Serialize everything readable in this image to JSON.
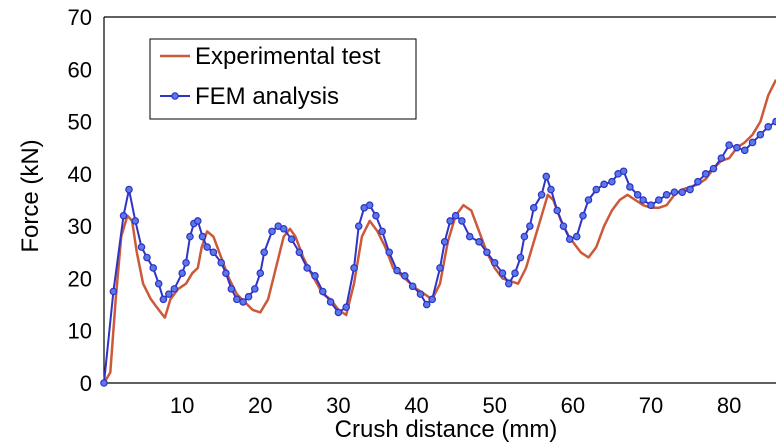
{
  "chart_data": {
    "type": "line",
    "xlabel": "Crush distance (mm)",
    "ylabel": "Force (kN)",
    "xlim": [
      0,
      86
    ],
    "ylim": [
      0,
      70
    ],
    "x_ticks": [
      10,
      20,
      30,
      40,
      50,
      60,
      70,
      80
    ],
    "y_ticks": [
      0,
      10,
      20,
      30,
      40,
      50,
      60,
      70
    ],
    "grid": false,
    "legend": "top-left",
    "series": [
      {
        "name": "Experimental test",
        "color": "#cc5a3a",
        "markers": false,
        "points": [
          [
            0,
            0
          ],
          [
            0.8,
            2
          ],
          [
            1.5,
            16
          ],
          [
            2.2,
            28
          ],
          [
            3,
            32
          ],
          [
            3.6,
            31
          ],
          [
            4.2,
            25
          ],
          [
            5,
            19
          ],
          [
            6,
            16
          ],
          [
            7,
            14
          ],
          [
            7.8,
            12.5
          ],
          [
            8.5,
            16
          ],
          [
            9.5,
            18
          ],
          [
            10.5,
            19
          ],
          [
            11.3,
            21
          ],
          [
            12,
            22
          ],
          [
            12.5,
            26
          ],
          [
            13.2,
            29
          ],
          [
            14,
            28
          ],
          [
            15,
            24
          ],
          [
            16,
            20
          ],
          [
            17,
            17
          ],
          [
            18,
            15.5
          ],
          [
            19,
            14
          ],
          [
            20,
            13.5
          ],
          [
            21,
            16
          ],
          [
            22,
            22
          ],
          [
            23,
            28
          ],
          [
            23.8,
            29.5
          ],
          [
            24.5,
            28
          ],
          [
            25.5,
            24
          ],
          [
            26.5,
            21
          ],
          [
            28,
            17
          ],
          [
            29,
            16
          ],
          [
            30,
            14
          ],
          [
            31,
            13
          ],
          [
            32,
            19
          ],
          [
            33,
            28
          ],
          [
            34,
            31
          ],
          [
            35,
            29
          ],
          [
            36,
            26
          ],
          [
            37,
            22
          ],
          [
            38.5,
            20
          ],
          [
            40,
            18
          ],
          [
            41,
            17
          ],
          [
            42,
            16
          ],
          [
            43,
            19
          ],
          [
            44,
            27
          ],
          [
            45,
            32
          ],
          [
            46,
            34
          ],
          [
            47,
            33
          ],
          [
            48,
            29
          ],
          [
            49,
            25
          ],
          [
            50,
            22
          ],
          [
            51,
            20
          ],
          [
            52,
            19.5
          ],
          [
            53,
            19
          ],
          [
            54,
            22
          ],
          [
            55,
            27
          ],
          [
            56,
            32
          ],
          [
            56.8,
            36
          ],
          [
            57.5,
            35
          ],
          [
            58.5,
            31
          ],
          [
            59.5,
            28
          ],
          [
            61,
            25
          ],
          [
            62,
            24
          ],
          [
            63,
            26
          ],
          [
            64,
            30
          ],
          [
            65,
            33
          ],
          [
            66,
            35
          ],
          [
            67,
            36
          ],
          [
            68,
            35
          ],
          [
            69,
            34
          ],
          [
            70,
            33.5
          ],
          [
            71,
            33.5
          ],
          [
            72,
            34
          ],
          [
            73,
            36
          ],
          [
            74,
            37
          ],
          [
            75,
            37.5
          ],
          [
            76,
            38
          ],
          [
            77,
            39
          ],
          [
            78,
            41
          ],
          [
            79,
            42.5
          ],
          [
            80,
            43
          ],
          [
            81,
            45
          ],
          [
            82,
            46
          ],
          [
            83,
            47.5
          ],
          [
            84,
            50
          ],
          [
            85,
            55
          ],
          [
            86,
            58
          ]
        ]
      },
      {
        "name": "FEM analysis",
        "color": "#2f33c6",
        "markers": true,
        "points": [
          [
            0,
            0
          ],
          [
            1.2,
            17.5
          ],
          [
            2.5,
            32
          ],
          [
            3.2,
            37
          ],
          [
            4,
            31
          ],
          [
            4.8,
            26
          ],
          [
            5.5,
            24
          ],
          [
            6.3,
            22
          ],
          [
            7,
            19
          ],
          [
            7.6,
            16
          ],
          [
            8.3,
            17
          ],
          [
            9,
            18
          ],
          [
            10,
            21
          ],
          [
            10.5,
            23
          ],
          [
            11,
            28
          ],
          [
            11.5,
            30.5
          ],
          [
            12,
            31
          ],
          [
            12.6,
            28
          ],
          [
            13.2,
            26
          ],
          [
            14,
            25
          ],
          [
            15,
            23
          ],
          [
            15.6,
            21
          ],
          [
            16.3,
            18
          ],
          [
            17,
            16
          ],
          [
            17.8,
            15.5
          ],
          [
            18.5,
            16.5
          ],
          [
            19.3,
            18
          ],
          [
            20,
            21
          ],
          [
            20.5,
            25
          ],
          [
            21.5,
            29
          ],
          [
            22.3,
            30
          ],
          [
            23,
            29.5
          ],
          [
            24,
            27.5
          ],
          [
            25,
            25
          ],
          [
            26,
            22
          ],
          [
            27,
            20.5
          ],
          [
            28,
            17.5
          ],
          [
            29,
            15.5
          ],
          [
            30,
            13.5
          ],
          [
            31,
            14.5
          ],
          [
            32,
            22
          ],
          [
            32.6,
            30
          ],
          [
            33.3,
            33.5
          ],
          [
            34,
            34
          ],
          [
            34.8,
            32
          ],
          [
            35.6,
            29
          ],
          [
            36.5,
            25
          ],
          [
            37.5,
            21.5
          ],
          [
            38.5,
            20.5
          ],
          [
            39.5,
            18.5
          ],
          [
            40.5,
            17
          ],
          [
            41.3,
            15
          ],
          [
            42,
            16
          ],
          [
            43,
            22
          ],
          [
            43.6,
            27
          ],
          [
            44.3,
            31
          ],
          [
            45,
            32
          ],
          [
            45.8,
            31
          ],
          [
            46.8,
            28
          ],
          [
            48,
            27
          ],
          [
            49,
            25
          ],
          [
            50,
            23
          ],
          [
            51,
            21
          ],
          [
            51.8,
            19
          ],
          [
            52.6,
            21
          ],
          [
            53.3,
            24
          ],
          [
            53.8,
            28
          ],
          [
            54.5,
            30
          ],
          [
            55,
            33.5
          ],
          [
            56,
            36
          ],
          [
            56.6,
            39.5
          ],
          [
            57.2,
            37
          ],
          [
            58,
            33
          ],
          [
            58.8,
            30
          ],
          [
            59.6,
            27.5
          ],
          [
            60.5,
            28
          ],
          [
            61.3,
            32
          ],
          [
            62,
            35
          ],
          [
            63,
            37
          ],
          [
            64,
            38
          ],
          [
            65,
            38.5
          ],
          [
            65.8,
            40
          ],
          [
            66.5,
            40.5
          ],
          [
            67.3,
            37.5
          ],
          [
            68.3,
            36
          ],
          [
            69,
            35
          ],
          [
            70,
            34
          ],
          [
            71,
            35
          ],
          [
            72,
            36
          ],
          [
            73,
            36.5
          ],
          [
            74,
            36.5
          ],
          [
            75,
            37
          ],
          [
            76,
            38.5
          ],
          [
            77,
            40
          ],
          [
            78,
            41
          ],
          [
            79,
            43
          ],
          [
            80,
            45.5
          ],
          [
            81,
            45
          ],
          [
            82,
            44.5
          ],
          [
            83,
            46
          ],
          [
            84,
            47.5
          ],
          [
            85,
            49
          ],
          [
            86,
            50
          ]
        ]
      }
    ]
  }
}
